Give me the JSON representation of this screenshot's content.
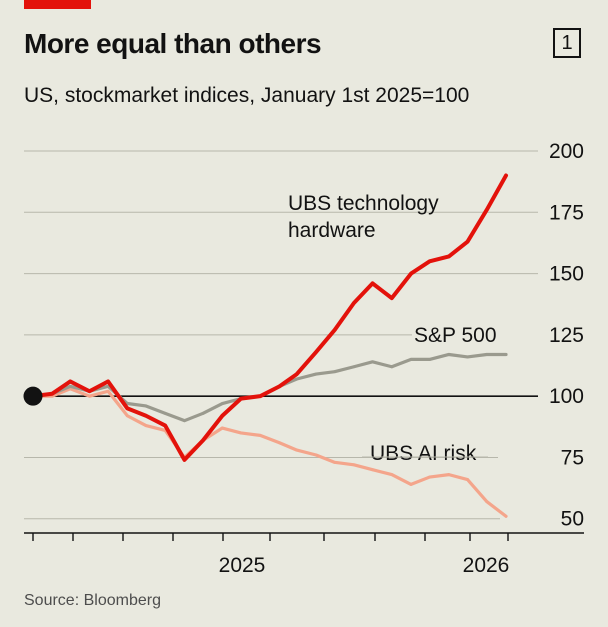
{
  "header": {
    "title": "More equal than others",
    "badge": "1",
    "subtitle": "US, stockmarket indices, January 1st 2025=100"
  },
  "footer": {
    "source": "Source: Bloomberg"
  },
  "colors": {
    "tech_hardware": "#e3120b",
    "sp500": "#9a9a8e",
    "ai_risk": "#f4a58b",
    "background": "#e9e9df",
    "gridline": "#b7b7ab"
  },
  "chart_data": {
    "type": "line",
    "title": "More equal than others",
    "subtitle": "US, stockmarket indices, January 1st 2025=100",
    "x_tick_labels": [
      "2025",
      "2026"
    ],
    "y_ticks": [
      50,
      75,
      100,
      125,
      150,
      175,
      200
    ],
    "ylim": [
      45,
      200
    ],
    "baseline": 100,
    "baseline_marker": "start point at 100",
    "grid": true,
    "legend": "direct labels",
    "x": [
      "2024-01-01",
      "2024-02-01",
      "2024-03-01",
      "2024-04-01",
      "2024-05-01",
      "2024-06-01",
      "2024-07-01",
      "2024-08-01",
      "2024-09-01",
      "2024-10-01",
      "2024-11-01",
      "2024-12-01",
      "2025-01-01",
      "2025-02-01",
      "2025-03-01",
      "2025-04-01",
      "2025-05-01",
      "2025-06-01",
      "2025-07-01",
      "2025-08-01",
      "2025-09-01",
      "2025-10-01",
      "2025-11-01",
      "2025-12-01",
      "2026-01-01",
      "2026-02-01"
    ],
    "series": [
      {
        "name": "UBS technology hardware",
        "label_lines": [
          "UBS technology",
          "hardware"
        ],
        "color": "#e3120b",
        "values": [
          100,
          101,
          106,
          102,
          106,
          95,
          92,
          88,
          74,
          82,
          92,
          99,
          100,
          104,
          109,
          118,
          127,
          138,
          146,
          140,
          150,
          155,
          157,
          163,
          176,
          190
        ]
      },
      {
        "name": "S&P 500",
        "label_lines": [
          "S&P 500"
        ],
        "color": "#9a9a8e",
        "values": [
          100,
          101,
          104,
          102,
          104,
          97,
          96,
          93,
          90,
          93,
          97,
          99,
          100,
          104,
          107,
          109,
          110,
          112,
          114,
          112,
          115,
          115,
          117,
          116,
          117,
          117
        ]
      },
      {
        "name": "UBS AI risk",
        "label_lines": [
          "UBS AI risk"
        ],
        "color": "#f4a58b",
        "values": [
          100,
          100,
          103,
          100,
          102,
          92,
          88,
          86,
          75,
          82,
          87,
          85,
          84,
          81,
          78,
          76,
          73,
          72,
          70,
          68,
          64,
          67,
          68,
          66,
          57,
          51
        ]
      }
    ]
  }
}
